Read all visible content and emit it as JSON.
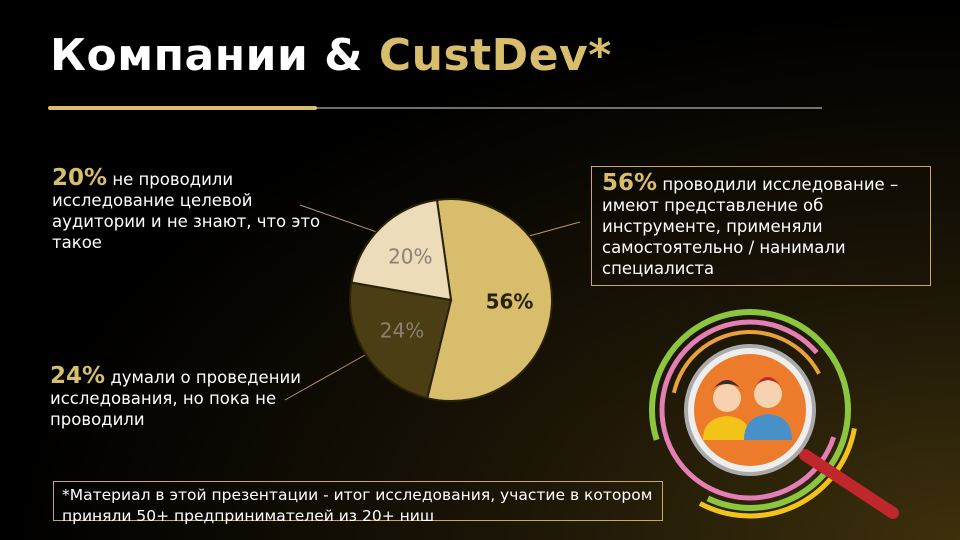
{
  "slide": {
    "title": {
      "main": "Компании &",
      "accent": "CustDev*"
    },
    "footnote": "*Материал в этой презентации - итог исследования, участие в котором приняли 50+ предпринимателей из 20+ ниш"
  },
  "chart_data": {
    "type": "pie",
    "categories": [
      "проводили исследование – имеют представление об инструменте, применяли самостоятельно / нанимали специалиста",
      "думали о проведении исследования, но пока не проводили",
      "не проводили исследование целевой аудитории и не знают, что это такое"
    ],
    "values": [
      56,
      24,
      20
    ],
    "value_labels": [
      "56%",
      "24%",
      "20%"
    ],
    "colors": [
      "#d8bd6c",
      "#4b3e14",
      "#ecdcb9"
    ],
    "label_colors": [
      "#2a2205",
      "#8a8170",
      "#8a8170"
    ]
  }
}
